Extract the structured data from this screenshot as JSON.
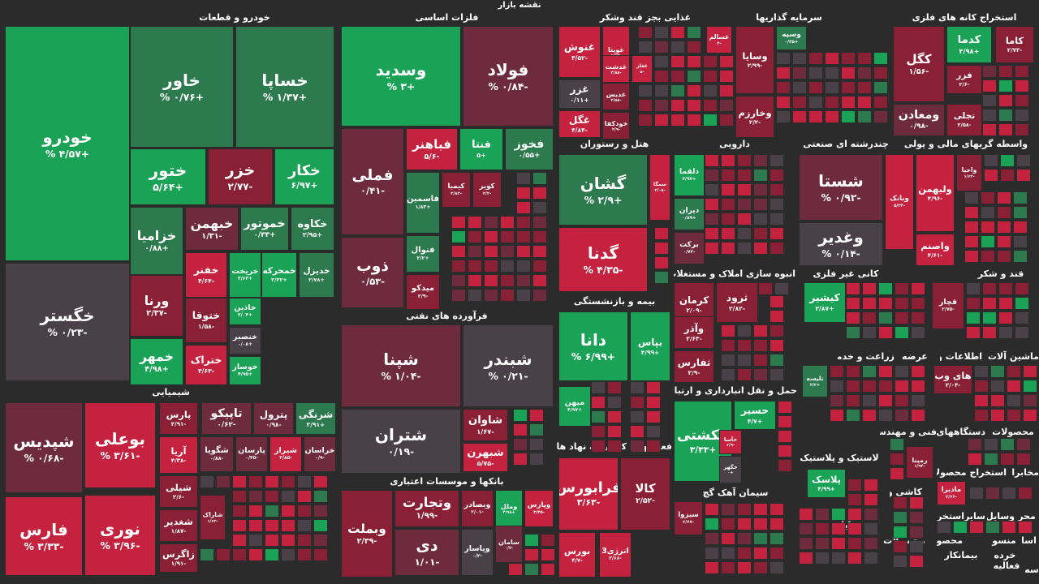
{
  "header": {
    "title": "نقشه بازار"
  },
  "colors": {
    "strong_green": "#1aa356",
    "mid_green": "#2c7a4e",
    "neutral": "#4a4048",
    "dim_red": "#6e2b3d",
    "mid_red": "#8a2035",
    "strong_red": "#c4223e"
  },
  "sections": [
    {
      "name": "خودرو و قطعات"
    },
    {
      "name": "فلزات اساسی"
    },
    {
      "name": "غذایی بجز قند وشکر"
    },
    {
      "name": "سرمایه گذاریها"
    },
    {
      "name": "استخراج کانه های فلزی"
    },
    {
      "name": "فرآورده های نفتی"
    },
    {
      "name": "هتل و رستوران"
    },
    {
      "name": "دارویی"
    },
    {
      "name": "چندرشته ای صنعتی"
    },
    {
      "name": "واسطه گریهای مالی و پولی"
    },
    {
      "name": "شیمیایی"
    },
    {
      "name": "بیمه و بازنشستگی"
    },
    {
      "name": "انبوه سازی املاک و مستغلات"
    },
    {
      "name": "کانی غیر فلزی"
    },
    {
      "name": "قند و شکر"
    },
    {
      "name": "بانکها و موسسات اعتباری"
    },
    {
      "name": "فعالیتهای کمکی به نهاد های"
    },
    {
      "name": "حمل و نقل انبارداری و ارتباطات"
    },
    {
      "name": "اطلاعات و"
    },
    {
      "name": "ماشین آلات و"
    },
    {
      "name": "زراعت و خدمات"
    },
    {
      "name": "عرضه"
    },
    {
      "name": "سیمان آهک گچ"
    },
    {
      "name": "لاستیک و پلاستیک"
    },
    {
      "name": "فنی و مهندسی"
    },
    {
      "name": "دستگاههای"
    },
    {
      "name": "محصولات"
    },
    {
      "name": "کاشی و"
    },
    {
      "name": "مخابرات"
    },
    {
      "name": "استخراج محصولات"
    },
    {
      "name": "رایانه"
    },
    {
      "name": "محصولات"
    },
    {
      "name": "سایر"
    },
    {
      "name": "وسایل"
    },
    {
      "name": "استخراج"
    },
    {
      "name": "محصولات"
    },
    {
      "name": "محر"
    },
    {
      "name": "اسا"
    },
    {
      "name": "منسو"
    },
    {
      "name": "خرده"
    },
    {
      "name": "بیمانکار"
    },
    {
      "name": "فعالیه"
    },
    {
      "name": "سه"
    }
  ],
  "chart_data": {
    "type": "heatmap",
    "title": "نقشه بازار",
    "unit": "%",
    "series": [
      {
        "name": "خودرو",
        "change_text": "+۴/۵۷ %",
        "change": 4.57
      },
      {
        "name": "خگستر",
        "change_text": "-۰/۲۳ %",
        "change": -0.23
      },
      {
        "name": "خاور",
        "change_text": "+۰/۷۶ %",
        "change": 0.76
      },
      {
        "name": "خساپا",
        "change_text": "+۱/۳۷ %",
        "change": 1.37
      },
      {
        "name": "ختور",
        "change_text": "+۵/۶۴",
        "change": 5.64
      },
      {
        "name": "خزر",
        "change_text": "-۲/۷۷",
        "change": -2.77
      },
      {
        "name": "خکار",
        "change_text": "+۶/۹۷",
        "change": 6.97
      },
      {
        "name": "خزامیا",
        "change_text": "+۰/۸۸",
        "change": 0.88
      },
      {
        "name": "خبهمن",
        "change_text": "-۱/۳۱",
        "change": -1.31
      },
      {
        "name": "خموتور",
        "change_text": "+۰/۳۳",
        "change": 0.33
      },
      {
        "name": "خکاوه",
        "change_text": "+۲/۹۵",
        "change": 2.95
      },
      {
        "name": "خفنر",
        "change_text": "-۴/۶۴",
        "change": -4.64
      },
      {
        "name": "خریخت",
        "change_text": "+۳/۶۳",
        "change": 3.63
      },
      {
        "name": "خمحرکه",
        "change_text": "+۳/۳۲",
        "change": 3.32
      },
      {
        "name": "خدیزل",
        "change_text": "+۲/۷۸",
        "change": 2.78
      },
      {
        "name": "ورنا",
        "change_text": "-۲/۳۷",
        "change": -2.37
      },
      {
        "name": "ختوقا",
        "change_text": "-۱/۵۸",
        "change": -1.58
      },
      {
        "name": "خاذین",
        "change_text": "+۳/۰۴",
        "change": 3.04
      },
      {
        "name": "خمهر",
        "change_text": "+۴/۹۸",
        "change": 4.98
      },
      {
        "name": "ختراک",
        "change_text": "-۳/۶۳",
        "change": -3.63
      },
      {
        "name": "خنصیر",
        "change_text": "+۰/۰۸",
        "change": 0.08
      },
      {
        "name": "خوساز",
        "change_text": "+۴/۹۵",
        "change": 4.95
      },
      {
        "name": "وسدید",
        "change_text": "+۳ %",
        "change": 3.0
      },
      {
        "name": "فولاد",
        "change_text": "-۰/۸۴ %",
        "change": -0.84
      },
      {
        "name": "فملی",
        "change_text": "-۰/۴۱",
        "change": -0.41
      },
      {
        "name": "فباهنر",
        "change_text": "-۵/۶",
        "change": -5.6
      },
      {
        "name": "فنتا",
        "change_text": "+۵",
        "change": 5.0
      },
      {
        "name": "فخوز",
        "change_text": "+۰/۵۵",
        "change": 0.55
      },
      {
        "name": "فاسمین",
        "change_text": "+۱/۸۳",
        "change": 1.83
      },
      {
        "name": "کیمیا",
        "change_text": "-۲/۸۳",
        "change": -2.83
      },
      {
        "name": "کویر",
        "change_text": "-۲/۲",
        "change": -2.2
      },
      {
        "name": "ذوب",
        "change_text": "-۰/۵۳",
        "change": -0.53
      },
      {
        "name": "فنوال",
        "change_text": "+۲/۲",
        "change": 2.2
      },
      {
        "name": "میدکو",
        "change_text": "-۲/۹",
        "change": -2.9
      },
      {
        "name": "غنوش",
        "change_text": "-۳/۵۲",
        "change": -3.52
      },
      {
        "name": "غویتا",
        "change_text": "-۵/۶۳",
        "change": -5.63
      },
      {
        "name": "غسالم",
        "change_text": "-۴",
        "change": -4.0
      },
      {
        "name": "غغاز",
        "change_text": "-۵",
        "change": -5.0
      },
      {
        "name": "غدشت",
        "change_text": "-۴/۸۸",
        "change": -4.88
      },
      {
        "name": "غزر",
        "change_text": "+۰/۱۱",
        "change": 0.11
      },
      {
        "name": "غدیس",
        "change_text": "-۲/۵۸",
        "change": -2.58
      },
      {
        "name": "غگل",
        "change_text": "-۴/۸۴",
        "change": -4.84
      },
      {
        "name": "خودکفا",
        "change_text": "-۲/۹",
        "change": -2.9
      },
      {
        "name": "وسپه",
        "change_text": "+۰/۴۵",
        "change": 0.45
      },
      {
        "name": "وسایا",
        "change_text": "-۲/۹۹",
        "change": -2.99
      },
      {
        "name": "وخارزم",
        "change_text": "-۲/۲",
        "change": -2.2
      },
      {
        "name": "کگل",
        "change_text": "-۱/۵۶",
        "change": -1.56
      },
      {
        "name": "کدما",
        "change_text": "+۴/۹۸",
        "change": 4.98
      },
      {
        "name": "کاما",
        "change_text": "-۲/۷۳",
        "change": -2.73
      },
      {
        "name": "فزر",
        "change_text": "-۲/۶",
        "change": -2.6
      },
      {
        "name": "ومعادن",
        "change_text": "-۰/۹۸",
        "change": -0.98
      },
      {
        "name": "تجلی",
        "change_text": "-۲/۵۸",
        "change": -2.58
      },
      {
        "name": "شپنا",
        "change_text": "-۱/۰۴ %",
        "change": -1.04
      },
      {
        "name": "شبندر",
        "change_text": "-۰/۲۱ %",
        "change": -0.21
      },
      {
        "name": "شتران",
        "change_text": "-۰/۱۹",
        "change": -0.19
      },
      {
        "name": "شاوان",
        "change_text": "-۱/۶۷",
        "change": -1.67
      },
      {
        "name": "شبهرن",
        "change_text": "-۵/۷۵",
        "change": -5.75
      },
      {
        "name": "گشان",
        "change_text": "+۲/۹ %",
        "change": 2.9
      },
      {
        "name": "سمگا",
        "change_text": "-۳/۰۵",
        "change": -3.05
      },
      {
        "name": "گدنا",
        "change_text": "-۴/۳۵ %",
        "change": -4.35
      },
      {
        "name": "دلقما",
        "change_text": "+۴/۹۷",
        "change": 4.97
      },
      {
        "name": "دیران",
        "change_text": "+۰/۸۹",
        "change": 0.89
      },
      {
        "name": "برکت",
        "change_text": "-۰/۷۳",
        "change": -0.73
      },
      {
        "name": "شستا",
        "change_text": "-۰/۹۲ %",
        "change": -0.92
      },
      {
        "name": "وبانک",
        "change_text": "-۵/۳۴",
        "change": -5.34
      },
      {
        "name": "وغدیر",
        "change_text": "-۰/۱۴ %",
        "change": -0.14
      },
      {
        "name": "واحیا",
        "change_text": "-۱/۶۳",
        "change": -1.63
      },
      {
        "name": "ولبهمن",
        "change_text": "-۴/۹۶",
        "change": -4.96
      },
      {
        "name": "واصنم",
        "change_text": "-۴/۶۱",
        "change": -4.61
      },
      {
        "name": "شپدیس",
        "change_text": "-۰/۶۸ %",
        "change": -0.68
      },
      {
        "name": "بوعلی",
        "change_text": "-۳/۶۱ %",
        "change": -3.61
      },
      {
        "name": "پارس",
        "change_text": "-۲/۹۱",
        "change": -2.91
      },
      {
        "name": "تاپیکو",
        "change_text": "-۰/۶۲",
        "change": -0.62
      },
      {
        "name": "پترول",
        "change_text": "-۰/۹۸",
        "change": -0.98
      },
      {
        "name": "شرنگی",
        "change_text": "+۲/۹۱",
        "change": 2.91
      },
      {
        "name": "آریا",
        "change_text": "-۴/۳۸",
        "change": -4.38
      },
      {
        "name": "شگویا",
        "change_text": "-۰/۸۸",
        "change": -0.88
      },
      {
        "name": "پارسان",
        "change_text": "-۰/۴۵",
        "change": -0.45
      },
      {
        "name": "شیراز",
        "change_text": "-۳/۸۵",
        "change": -3.85
      },
      {
        "name": "خراسان",
        "change_text": "-۰/۹",
        "change": -0.9
      },
      {
        "name": "شیلی",
        "change_text": "-۲/۶",
        "change": -2.6
      },
      {
        "name": "شاراک",
        "change_text": "-۱/۶۳",
        "change": -1.63
      },
      {
        "name": "شغدیر",
        "change_text": "-۱/۸۷",
        "change": -1.87
      },
      {
        "name": "زاگرس",
        "change_text": "-۱/۹۱",
        "change": -1.91
      },
      {
        "name": "فارس",
        "change_text": "-۳/۳۳ %",
        "change": -3.33
      },
      {
        "name": "نوری",
        "change_text": "-۳/۹۶ %",
        "change": -3.96
      },
      {
        "name": "دانا",
        "change_text": "+۶/۹۹ %",
        "change": 6.99
      },
      {
        "name": "بپاس",
        "change_text": "+۴/۹۹",
        "change": 4.99
      },
      {
        "name": "میهن",
        "change_text": "+۴/۹۷",
        "change": 4.97
      },
      {
        "name": "کرمان",
        "change_text": "-۲/۰۹",
        "change": -2.09
      },
      {
        "name": "ثرود",
        "change_text": "-۲/۸۲",
        "change": -2.82
      },
      {
        "name": "وآذر",
        "change_text": "-۲/۶۳",
        "change": -2.63
      },
      {
        "name": "ثفارس",
        "change_text": "-۲/۹",
        "change": -2.9
      },
      {
        "name": "کیشیر",
        "change_text": "+۳/۸۷",
        "change": 3.87
      },
      {
        "name": "قچار",
        "change_text": "-۲/۷۵",
        "change": -2.75
      },
      {
        "name": "وبملت",
        "change_text": "-۲/۳۹",
        "change": -2.39
      },
      {
        "name": "وتجارت",
        "change_text": "-۱/۹۹",
        "change": -1.99
      },
      {
        "name": "وبصادر",
        "change_text": "-۲/۰۱",
        "change": -2.01
      },
      {
        "name": "وملل",
        "change_text": "+۴/۹۸",
        "change": 4.98
      },
      {
        "name": "وپارس",
        "change_text": "-۳/۴۵",
        "change": -3.45
      },
      {
        "name": "سامان",
        "change_text": "-۰/۷",
        "change": -0.7
      },
      {
        "name": "دی",
        "change_text": "-۱/۰۱",
        "change": -1.01
      },
      {
        "name": "وپاسار",
        "change_text": "-۰/۲",
        "change": -0.2
      },
      {
        "name": "فرابورس",
        "change_text": "-۳/۶۳",
        "change": -3.63
      },
      {
        "name": "کالا",
        "change_text": "-۲/۵۲",
        "change": -2.52
      },
      {
        "name": "بورس",
        "change_text": "-۴/۷",
        "change": -4.7
      },
      {
        "name": "انرژی3",
        "change_text": "-۳/۶۸",
        "change": -3.68
      },
      {
        "name": "حسیر",
        "change_text": "+۴/۷",
        "change": 4.7
      },
      {
        "name": "حکشتی",
        "change_text": "+۳/۳۳",
        "change": 3.33
      },
      {
        "name": "حآسا",
        "change_text": "-۶/۹",
        "change": -6.9
      },
      {
        "name": "حگهر",
        "change_text": "+۰",
        "change": 0.0
      },
      {
        "name": "های وب",
        "change_text": "-۲/۰۴",
        "change": -2.04
      },
      {
        "name": "تلیسه",
        "change_text": "+۲/۲",
        "change": 2.2
      },
      {
        "name": "سیزوا",
        "change_text": "-۲/۶۷",
        "change": -2.67
      },
      {
        "name": "پلاسک",
        "change_text": "+۴/۹۹",
        "change": 4.99
      },
      {
        "name": "رمپنا",
        "change_text": "-۱/۹۴",
        "change": -1.94
      },
      {
        "name": "مادیرا",
        "change_text": "-۳/۶۶",
        "change": -3.66
      }
    ]
  }
}
